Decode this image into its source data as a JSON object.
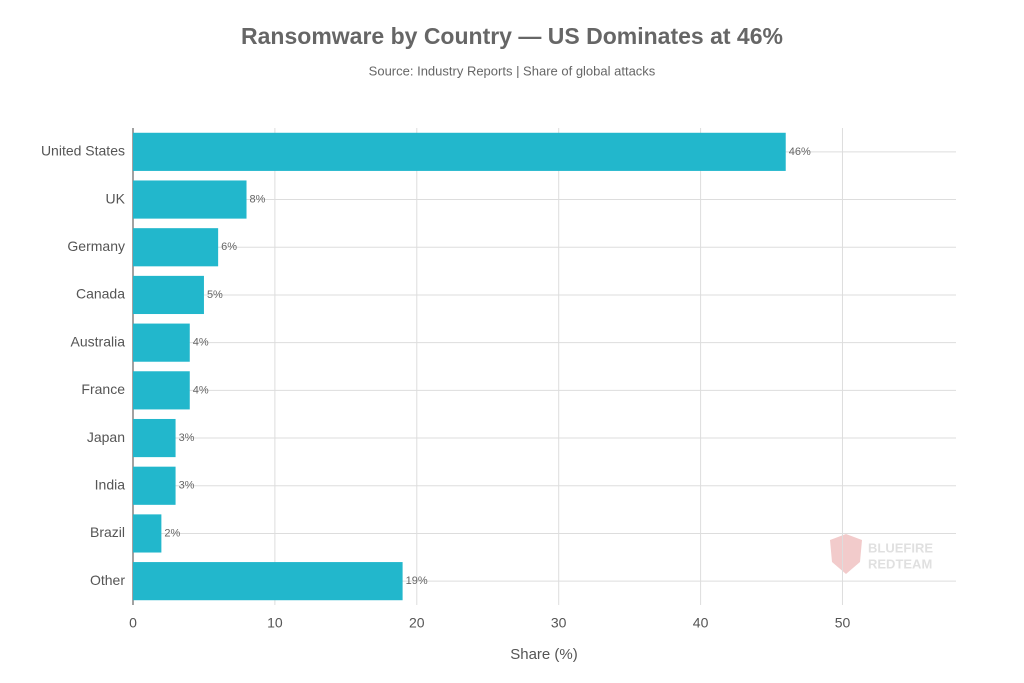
{
  "chart_data": {
    "type": "hbar",
    "title": "Ransomware by Country — US Dominates at 46%",
    "subtitle": "Source: Industry Reports | Share of global attacks",
    "x_label": "Share (%)",
    "categories": [
      "United States",
      "UK",
      "Germany",
      "Canada",
      "Australia",
      "France",
      "Japan",
      "India",
      "Brazil",
      "Other"
    ],
    "values": [
      46,
      8,
      6,
      5,
      4,
      4,
      3,
      3,
      2,
      19
    ],
    "value_labels": [
      "46%",
      "8%",
      "6%",
      "5%",
      "4%",
      "4%",
      "3%",
      "3%",
      "2%",
      "19%"
    ],
    "color": "#22b7cc",
    "xlim": [
      0,
      58
    ],
    "xticks": [
      0,
      10,
      20,
      30,
      40,
      50
    ],
    "grid": true,
    "watermark": [
      "BLUEFIRE",
      "REDTEAM"
    ]
  }
}
